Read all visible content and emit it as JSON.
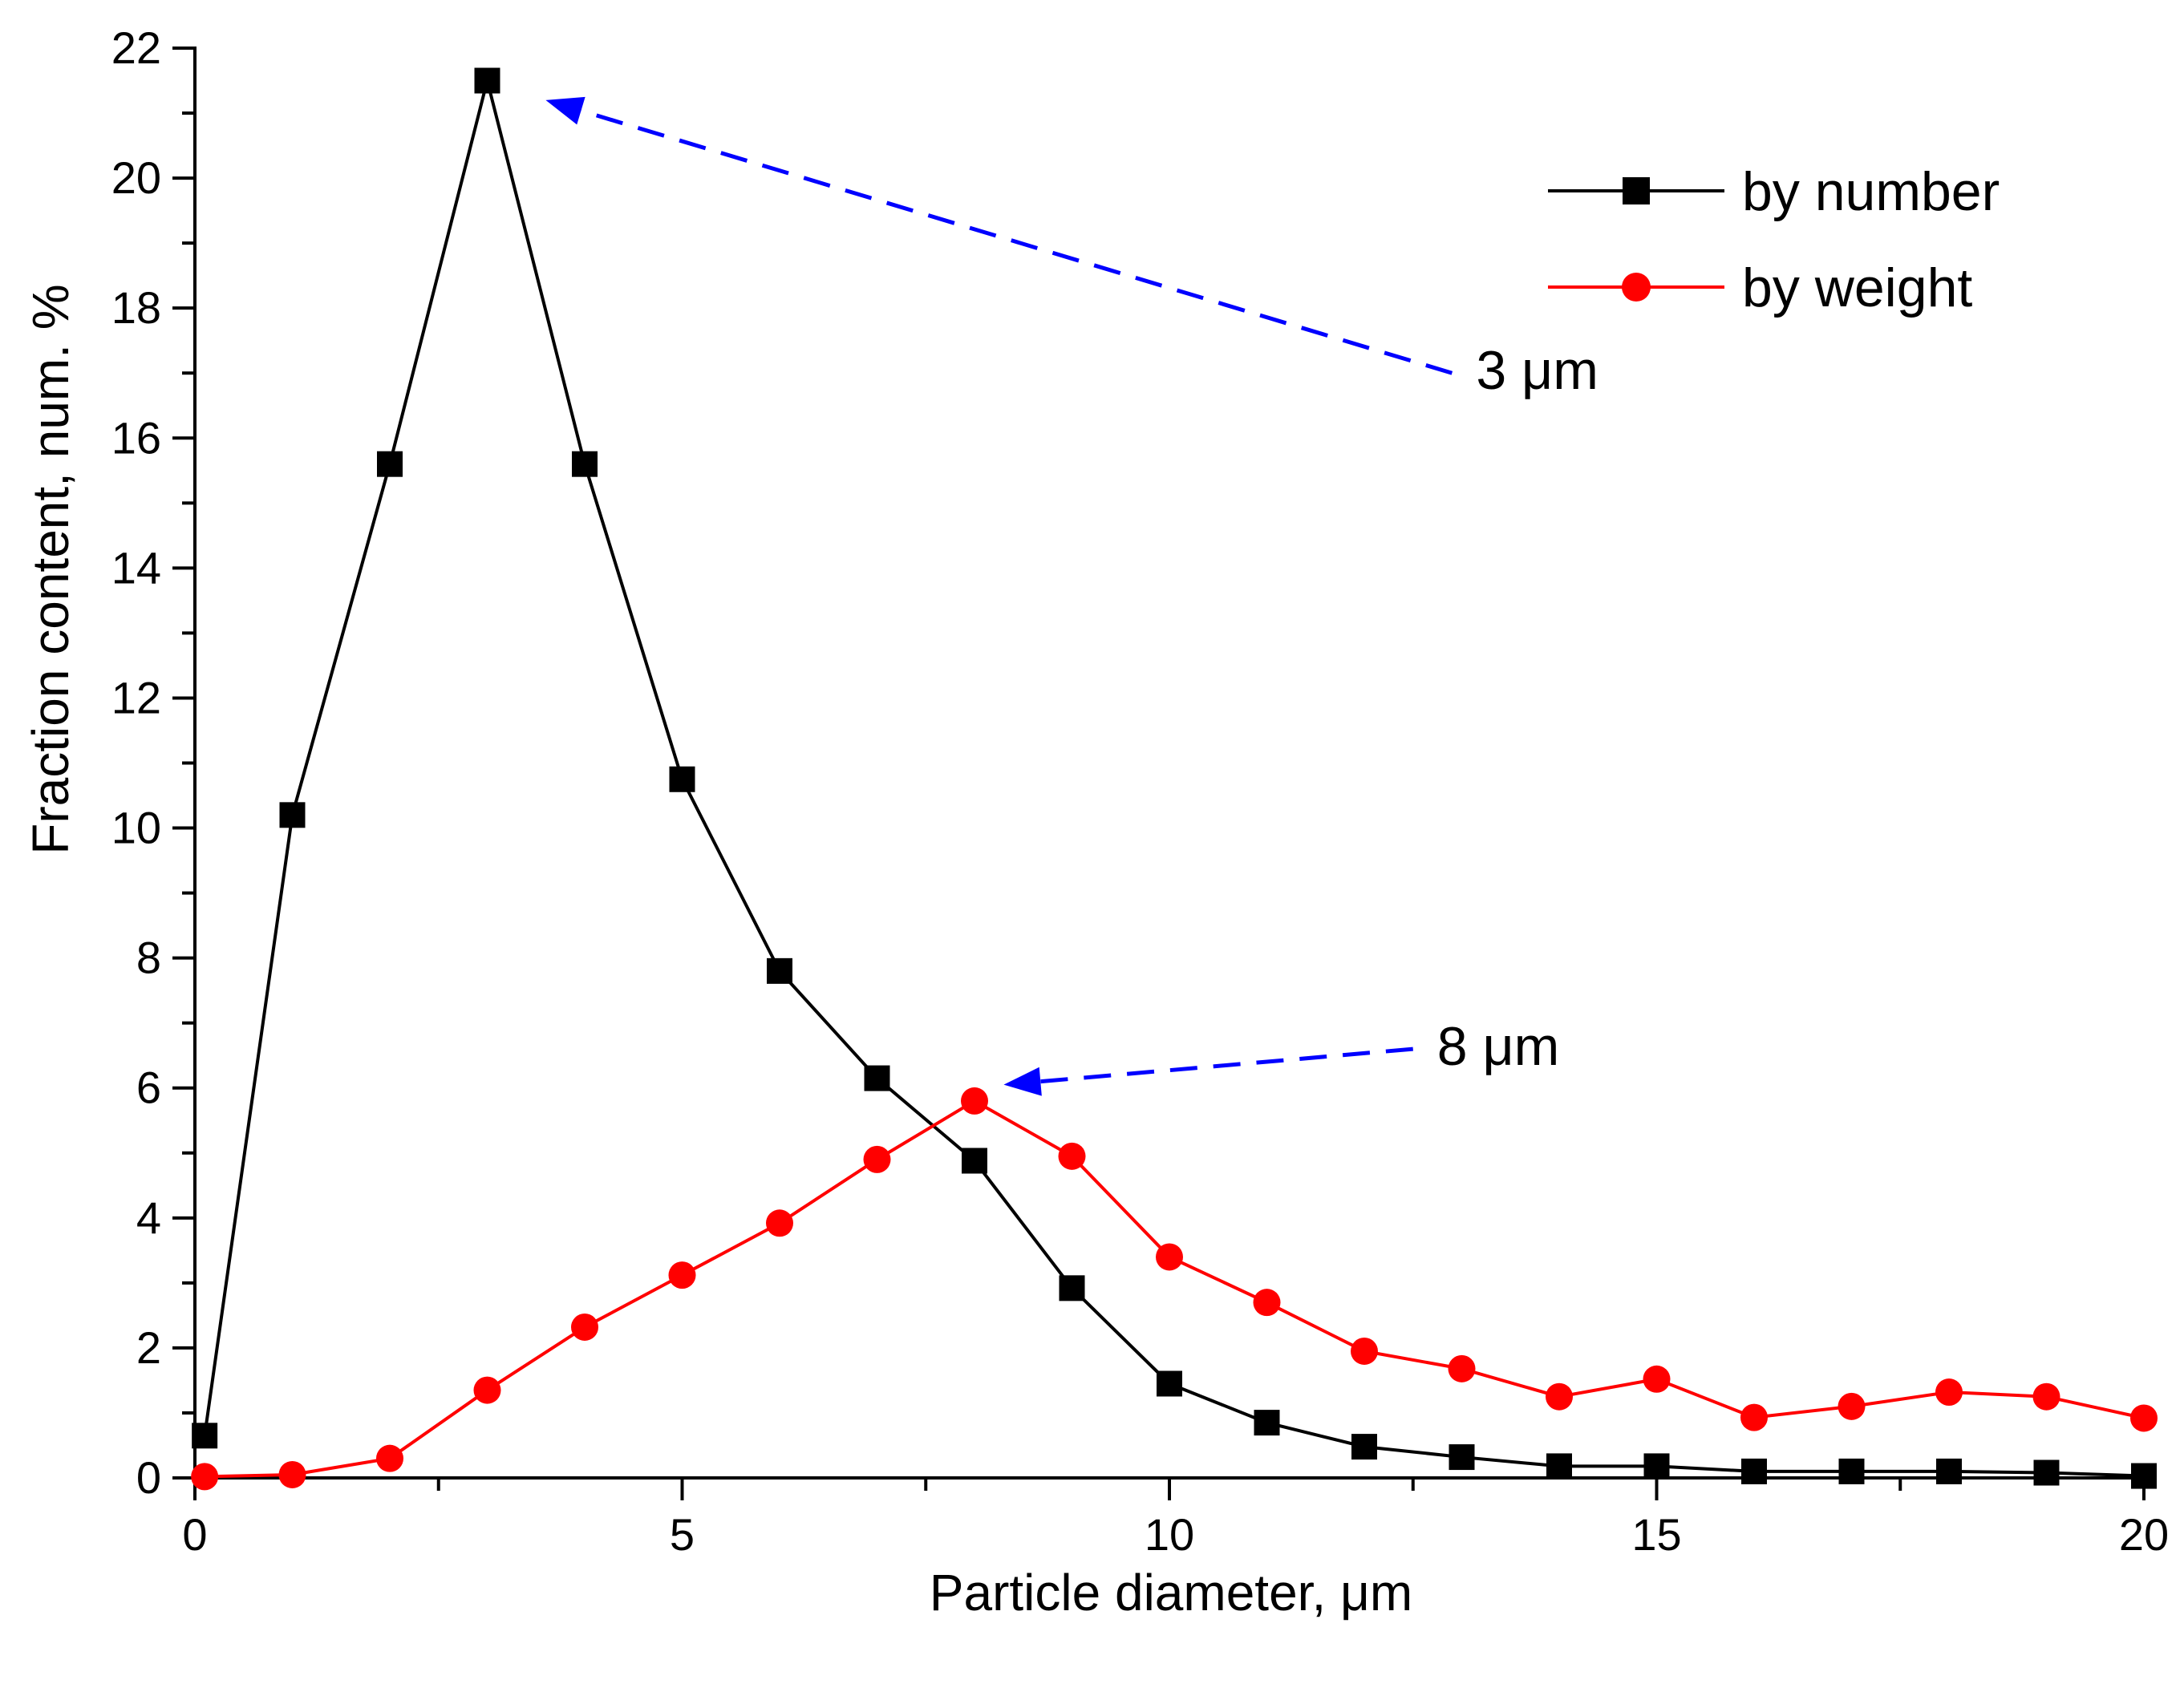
{
  "chart_data": {
    "type": "line",
    "title": "",
    "xlabel": "Particle diameter, μm",
    "ylabel": "Fraction content, num. %",
    "xlim": [
      0,
      20
    ],
    "ylim": [
      0,
      22
    ],
    "x_ticks": [
      0,
      5,
      10,
      15,
      20
    ],
    "x_tick_labels": [
      "0",
      "5",
      "10",
      "15",
      "20"
    ],
    "y_ticks": [
      0,
      2,
      4,
      6,
      8,
      10,
      12,
      14,
      16,
      18,
      20,
      22
    ],
    "y_tick_labels": [
      "0",
      "2",
      "4",
      "6",
      "8",
      "10",
      "12",
      "14",
      "16",
      "18",
      "20",
      "22"
    ],
    "grid": false,
    "legend_position": "top-right",
    "series": [
      {
        "name": "by number",
        "color": "#000000",
        "marker": "square",
        "x": [
          0.1,
          1,
          2,
          3,
          4,
          5,
          6,
          7,
          8,
          9,
          10,
          11,
          12,
          13,
          14,
          15,
          16,
          17,
          18,
          19,
          20
        ],
        "values": [
          0.65,
          10.2,
          15.6,
          21.5,
          15.6,
          10.75,
          7.8,
          6.15,
          4.88,
          2.92,
          1.45,
          0.85,
          0.48,
          0.32,
          0.18,
          0.18,
          0.1,
          0.1,
          0.1,
          0.08,
          0.03
        ]
      },
      {
        "name": "by weight",
        "color": "#ff0000",
        "marker": "circle",
        "x": [
          0.1,
          1,
          2,
          3,
          4,
          5,
          6,
          7,
          8,
          9,
          10,
          11,
          12,
          13,
          14,
          15,
          16,
          17,
          18,
          19,
          20
        ],
        "values": [
          0.02,
          0.05,
          0.3,
          1.35,
          2.32,
          3.12,
          3.92,
          4.9,
          5.8,
          4.95,
          3.4,
          2.7,
          1.95,
          1.68,
          1.25,
          1.52,
          0.93,
          1.1,
          1.32,
          1.25,
          0.92
        ]
      }
    ],
    "annotations": [
      {
        "text": "3 μm",
        "color": "#0000ff",
        "from": [
          12.9,
          17.0
        ],
        "to": [
          3.6,
          21.2
        ]
      },
      {
        "text": "8 μm",
        "color": "#0000ff",
        "from": [
          12.5,
          6.6
        ],
        "to": [
          8.3,
          6.05
        ]
      }
    ]
  }
}
